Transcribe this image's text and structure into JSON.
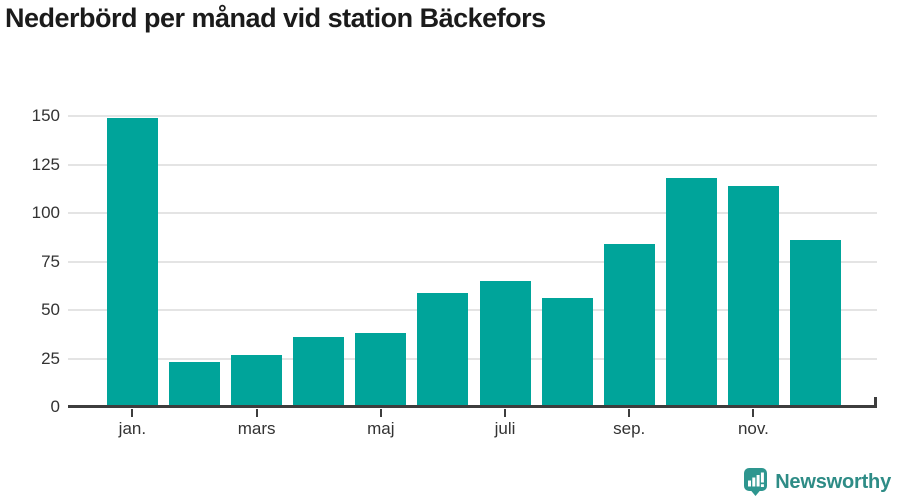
{
  "header": {
    "title": "Nederbörd per månad vid station Bäckefors"
  },
  "branding": {
    "logo_text": "Newsworthy",
    "logo_icon": "speech-bubble-with-bar-chart-and-exclamation"
  },
  "colors": {
    "bar": "#00a49a",
    "axis": "#3d3d3d",
    "gridline": "#e4e4e4",
    "tick_label": "#333333",
    "title": "#1b1b1b",
    "logo": "#2e8c86"
  },
  "chart_data": {
    "type": "bar",
    "title": "Nederbörd per månad vid station Bäckefors",
    "categories": [
      "jan.",
      "",
      "mars",
      "",
      "maj",
      "",
      "juli",
      "",
      "sep.",
      "",
      "nov.",
      ""
    ],
    "values": [
      149,
      23,
      27,
      36,
      38,
      59,
      65,
      56,
      84,
      118,
      114,
      86
    ],
    "x_tick_indices": [
      0,
      2,
      4,
      6,
      8,
      10
    ],
    "x_tick_labels": [
      "jan.",
      "mars",
      "maj",
      "juli",
      "sep.",
      "nov."
    ],
    "y_ticks": [
      0,
      25,
      50,
      75,
      100,
      125,
      150
    ],
    "ylim": [
      0,
      150
    ],
    "xlabel": "",
    "ylabel": "",
    "grid": "horizontal-only",
    "legend": "none",
    "bar_count": 12
  }
}
